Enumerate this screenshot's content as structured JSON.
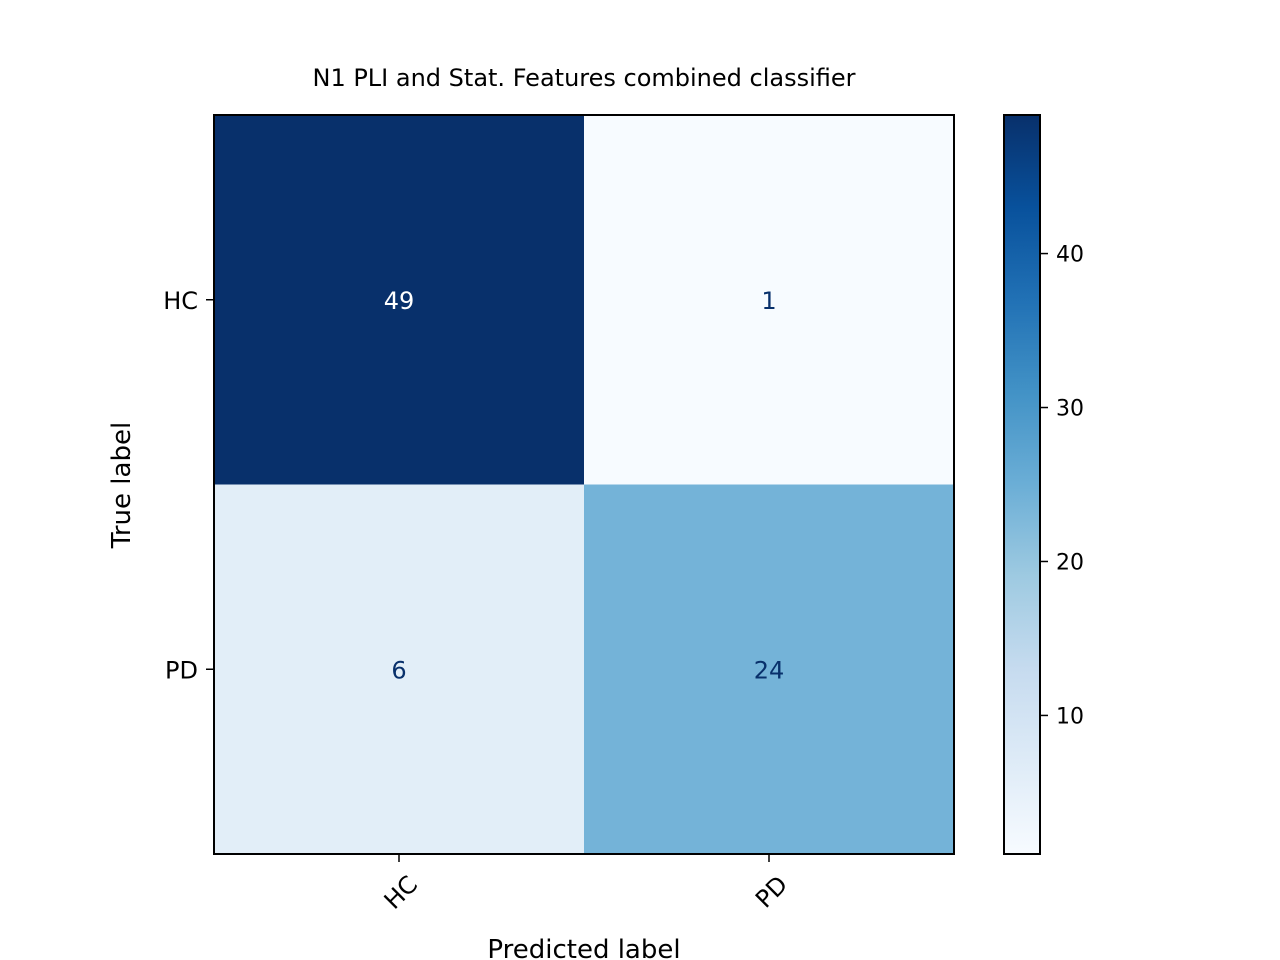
{
  "chart_data": {
    "type": "heatmap",
    "title": "N1 PLI and Stat. Features combined classifier",
    "xlabel": "Predicted label",
    "ylabel": "True label",
    "x_categories": [
      "HC",
      "PD"
    ],
    "y_categories": [
      "HC",
      "PD"
    ],
    "values": [
      [
        49,
        1
      ],
      [
        6,
        24
      ]
    ],
    "colormap": "Blues",
    "colorbar": {
      "min": 1,
      "max": 49,
      "ticks": [
        10,
        20,
        30,
        40
      ]
    },
    "grid": false
  }
}
